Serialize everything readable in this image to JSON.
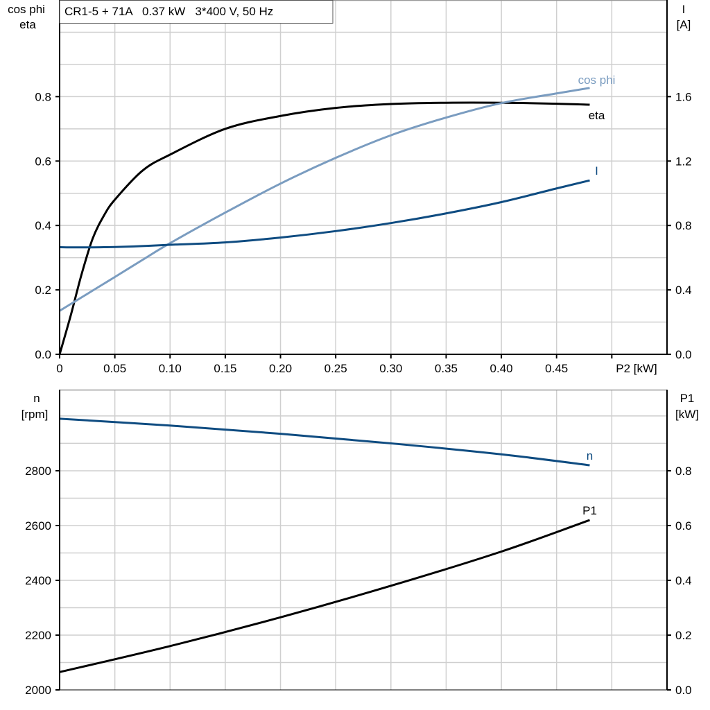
{
  "chart_data": [
    {
      "type": "line",
      "title": "CR1-5 + 71A   0.37 kW   3*400 V, 50 Hz",
      "xlabel": "P2 [kW]",
      "ylabel_left": [
        "cos phi",
        "eta"
      ],
      "ylabel_right": [
        "I",
        "[A]"
      ],
      "xlim": [
        0,
        0.55
      ],
      "ylim_left": [
        0,
        1.1
      ],
      "ylim_right": [
        0,
        2.2
      ],
      "x_ticks": [
        "0",
        "0.05",
        "0.10",
        "0.15",
        "0.20",
        "0.25",
        "0.30",
        "0.35",
        "0.40",
        "0.45"
      ],
      "y_ticks_left": [
        "0.0",
        "0.2",
        "0.4",
        "0.6",
        "0.8"
      ],
      "y_ticks_right": [
        "0.0",
        "0.4",
        "0.8",
        "1.2",
        "1.6"
      ],
      "grid": true,
      "x": [
        0,
        0.01,
        0.02,
        0.03,
        0.04,
        0.05,
        0.075,
        0.1,
        0.15,
        0.2,
        0.25,
        0.3,
        0.35,
        0.4,
        0.45,
        0.48
      ],
      "series": [
        {
          "name": "eta",
          "axis": "left",
          "color": "#000000",
          "values": [
            0,
            0.12,
            0.25,
            0.36,
            0.43,
            0.48,
            0.57,
            0.62,
            0.7,
            0.74,
            0.765,
            0.777,
            0.781,
            0.781,
            0.778,
            0.775
          ]
        },
        {
          "name": "cos phi",
          "axis": "left",
          "color": "#7a9cc0",
          "values": [
            0.135,
            0.156,
            0.177,
            0.198,
            0.219,
            0.24,
            0.293,
            0.345,
            0.44,
            0.53,
            0.61,
            0.68,
            0.735,
            0.78,
            0.81,
            0.827
          ]
        },
        {
          "name": "I",
          "axis": "right",
          "color": "#0f4c81",
          "values": [
            0.665,
            0.664,
            0.664,
            0.664,
            0.665,
            0.666,
            0.672,
            0.68,
            0.695,
            0.725,
            0.765,
            0.815,
            0.875,
            0.945,
            1.03,
            1.08
          ]
        }
      ]
    },
    {
      "type": "line",
      "xlim": [
        0,
        0.55
      ],
      "ylabel_left": [
        "n",
        "[rpm]"
      ],
      "ylabel_right": [
        "P1",
        "[kW]"
      ],
      "ylim_left": [
        2000,
        3096
      ],
      "ylim_right": [
        0,
        1.096
      ],
      "y_ticks_left": [
        "2000",
        "2200",
        "2400",
        "2600",
        "2800"
      ],
      "y_ticks_right": [
        "0.0",
        "0.2",
        "0.4",
        "0.6",
        "0.8"
      ],
      "grid": true,
      "x": [
        0,
        0.1,
        0.2,
        0.3,
        0.4,
        0.48
      ],
      "series": [
        {
          "name": "n",
          "axis": "left",
          "color": "#0f4c81",
          "values": [
            2990,
            2965,
            2935,
            2900,
            2860,
            2820
          ]
        },
        {
          "name": "P1",
          "axis": "right",
          "color": "#000000",
          "values": [
            0.065,
            0.16,
            0.265,
            0.38,
            0.505,
            0.62
          ]
        }
      ]
    }
  ]
}
